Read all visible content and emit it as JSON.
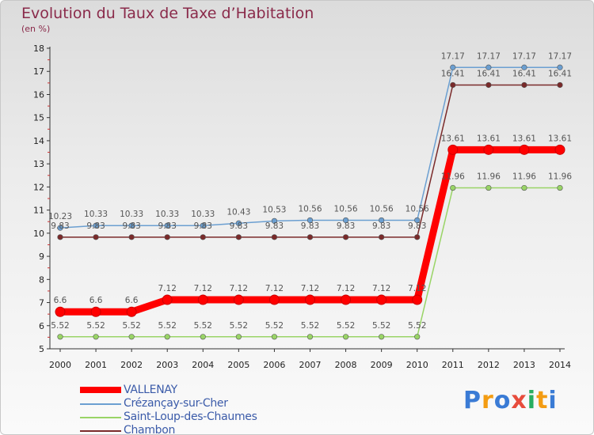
{
  "header": {
    "title": "Evolution du Taux de Taxe d’Habitation",
    "subtitle": "(en %)"
  },
  "logo": {
    "text": [
      "P",
      "r",
      "o",
      "x",
      "i",
      "t",
      "i"
    ],
    "colors": [
      "#3a7bd5",
      "#f39c12",
      "#3a7bd5",
      "#e74c3c",
      "#27ae60",
      "#f39c12",
      "#3a7bd5"
    ]
  },
  "chart_data": {
    "type": "line",
    "title": "Evolution du Taux de Taxe d’Habitation",
    "ylabel": "(en %)",
    "x": [
      "2000",
      "2001",
      "2002",
      "2003",
      "2004",
      "2005",
      "2006",
      "2007",
      "2008",
      "2009",
      "2010",
      "2011",
      "2012",
      "2013",
      "2014"
    ],
    "ylim": [
      5,
      18
    ],
    "yticks": [
      "5",
      "6",
      "7",
      "8",
      "9",
      "10",
      "11",
      "12",
      "13",
      "14",
      "15",
      "16",
      "17",
      "18"
    ],
    "grid": false,
    "legend": "bottom-left",
    "series": [
      {
        "name": "VALLENAY",
        "color": "#ff0000",
        "style": "thick",
        "values": [
          6.6,
          6.6,
          6.6,
          7.12,
          7.12,
          7.12,
          7.12,
          7.12,
          7.12,
          7.12,
          7.12,
          13.61,
          13.61,
          13.61,
          13.61
        ],
        "labels": [
          "6.6",
          "6.6",
          "6.6",
          "7.12",
          "7.12",
          "7.12",
          "7.12",
          "7.12",
          "7.12",
          "7.12",
          "7.12",
          "13.61",
          "13.61",
          "13.61",
          "13.61"
        ]
      },
      {
        "name": "Crézançay-sur-Cher",
        "color": "#6b9fd1",
        "style": "thin",
        "values": [
          10.23,
          10.33,
          10.33,
          10.33,
          10.33,
          10.43,
          10.53,
          10.56,
          10.56,
          10.56,
          10.56,
          17.17,
          17.17,
          17.17,
          17.17
        ],
        "labels": [
          "10.23",
          "10.33",
          "10.33",
          "10.33",
          "10.33",
          "10.43",
          "10.53",
          "10.56",
          "10.56",
          "10.56",
          "10.56",
          "17.17",
          "17.17",
          "17.17",
          "17.17"
        ]
      },
      {
        "name": "Saint-Loup-des-Chaumes",
        "color": "#99d466",
        "style": "thin",
        "values": [
          5.52,
          5.52,
          5.52,
          5.52,
          5.52,
          5.52,
          5.52,
          5.52,
          5.52,
          5.52,
          5.52,
          11.96,
          11.96,
          11.96,
          11.96
        ],
        "labels": [
          "5.52",
          "5.52",
          "5.52",
          "5.52",
          "5.52",
          "5.52",
          "5.52",
          "5.52",
          "5.52",
          "5.52",
          "5.52",
          "11.96",
          "11.96",
          "11.96",
          "11.96"
        ]
      },
      {
        "name": "Chambon",
        "color": "#7a2a2a",
        "style": "thin",
        "values": [
          9.83,
          9.83,
          9.83,
          9.83,
          9.83,
          9.83,
          9.83,
          9.83,
          9.83,
          9.83,
          9.83,
          16.41,
          16.41,
          16.41,
          16.41
        ],
        "labels": [
          "9.83",
          "9.83",
          "9.83",
          "9.83",
          "9.83",
          "9.83",
          "9.83",
          "9.83",
          "9.83",
          "9.83",
          "9.83",
          "16.41",
          "16.41",
          "16.41",
          "16.41"
        ]
      }
    ]
  }
}
